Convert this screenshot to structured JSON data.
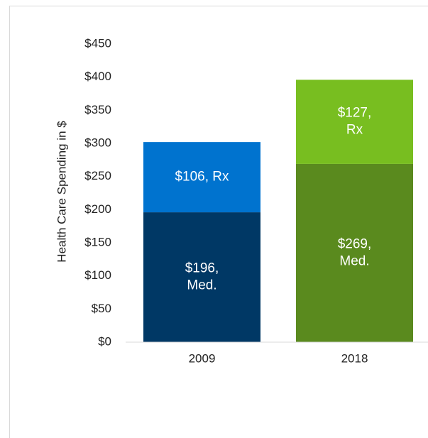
{
  "chart_data": {
    "type": "stacked_bar",
    "y_label": "Health Care Spending in $",
    "categories": [
      "2009",
      "2018"
    ],
    "series": [
      {
        "name": "Med.",
        "colors": [
          "#003865",
          "#5a8a1e"
        ],
        "values": [
          196,
          269
        ],
        "value_labels": [
          "$196, Med.",
          "$269, Med."
        ]
      },
      {
        "name": "Rx",
        "colors": [
          "#0073cf",
          "#78be20"
        ],
        "values": [
          106,
          127
        ],
        "value_labels": [
          "$106, Rx",
          "$127, Rx"
        ]
      }
    ],
    "ylim": [
      0,
      450
    ],
    "yticks": [
      {
        "value": 0,
        "label": "$0"
      },
      {
        "value": 50,
        "label": "$50"
      },
      {
        "value": 100,
        "label": "$100"
      },
      {
        "value": 150,
        "label": "$150"
      },
      {
        "value": 200,
        "label": "$200"
      },
      {
        "value": 250,
        "label": "$250"
      },
      {
        "value": 300,
        "label": "$300"
      },
      {
        "value": 350,
        "label": "$350"
      },
      {
        "value": 400,
        "label": "$400"
      },
      {
        "value": 450,
        "label": "$450"
      }
    ],
    "grid": false
  }
}
